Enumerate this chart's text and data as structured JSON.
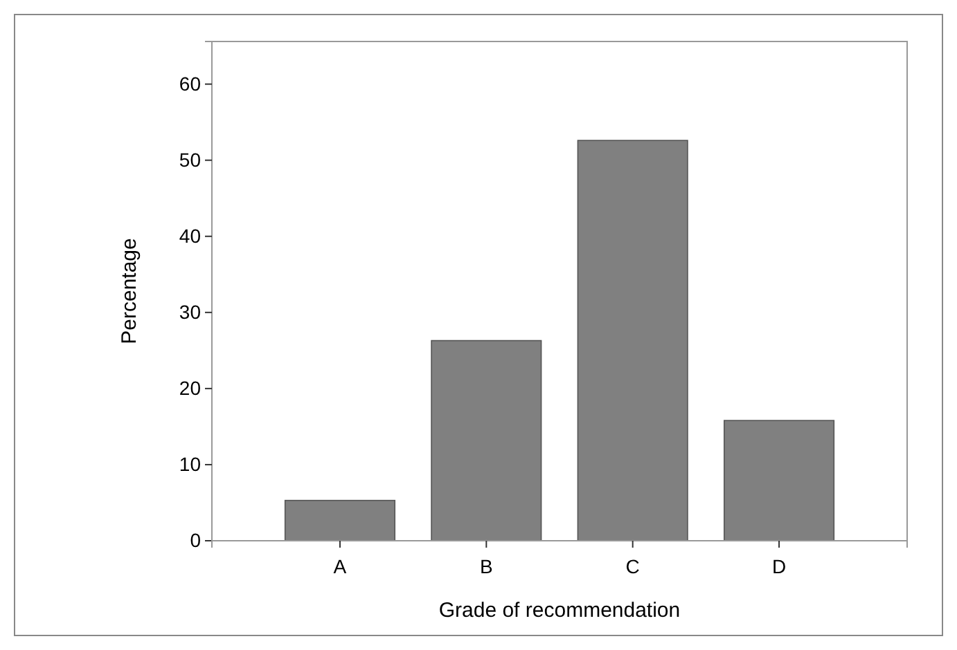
{
  "chart_data": {
    "type": "bar",
    "xlabel": "Grade of recommendation",
    "ylabel": "Percentage",
    "categories": [
      "A",
      "B",
      "C",
      "D"
    ],
    "values": [
      5.3,
      26.3,
      52.6,
      15.8
    ],
    "color": "#808080",
    "ylim": [
      0,
      65.6
    ],
    "yticks": [
      0,
      10,
      20,
      30,
      40,
      50,
      60
    ],
    "grid": false
  }
}
